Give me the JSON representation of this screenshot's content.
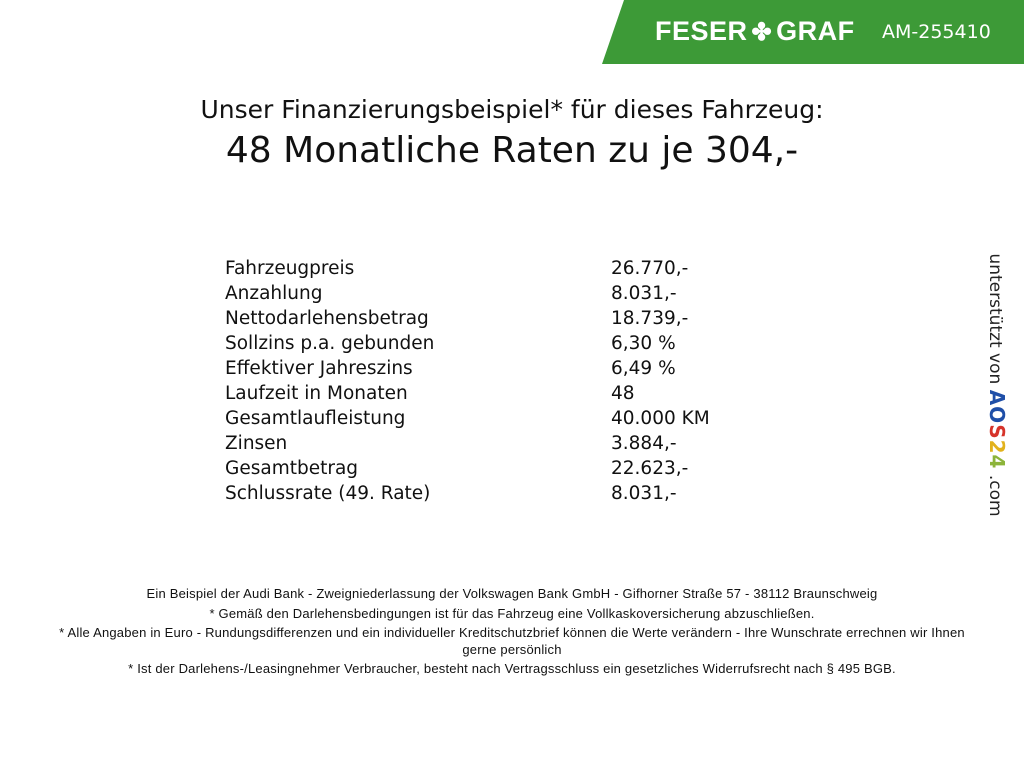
{
  "header": {
    "brand_left": "FESER",
    "brand_right": "GRAF",
    "brand_icon": "clover-icon",
    "code": "AM-255410",
    "banner_color": "#3d9a37"
  },
  "title": {
    "line1": "Unser Finanzierungsbeispiel* für dieses Fahrzeug:",
    "line2": "48 Monatliche Raten zu je 304,-"
  },
  "rows": [
    {
      "label": "Fahrzeugpreis",
      "value": "26.770,-"
    },
    {
      "label": "Anzahlung",
      "value": "8.031,-"
    },
    {
      "label": "Nettodarlehensbetrag",
      "value": "18.739,-"
    },
    {
      "label": "Sollzins p.a. gebunden",
      "value": "6,30 %"
    },
    {
      "label": "Effektiver Jahreszins",
      "value": "6,49 %"
    },
    {
      "label": "Laufzeit in Monaten",
      "value": "48"
    },
    {
      "label": "Gesamtlaufleistung",
      "value": "40.000 KM"
    },
    {
      "label": "Zinsen",
      "value": "3.884,-"
    },
    {
      "label": "Gesamtbetrag",
      "value": "22.623,-"
    },
    {
      "label": "Schlussrate (49. Rate)",
      "value": "8.031,-"
    }
  ],
  "side": {
    "text": "unterstützt von",
    "logo": [
      "A",
      "O",
      "S",
      "2",
      "4"
    ],
    "logo_colors": [
      "#1f4fa8",
      "#1f4fa8",
      "#d6332a",
      "#e2b21c",
      "#8cb43a"
    ],
    "suffix": ".com"
  },
  "footer": [
    "Ein Beispiel der Audi Bank - Zweigniederlassung der Volkswagen Bank GmbH - Gifhorner Straße 57 - 38112 Braunschweig",
    "* Gemäß den Darlehensbedingungen ist für das Fahrzeug eine Vollkaskoversicherung abzuschließen.",
    "* Alle Angaben in Euro - Rundungsdifferenzen und ein individueller Kreditschutzbrief können die Werte verändern - Ihre Wunschrate errechnen wir Ihnen gerne persönlich",
    "* Ist der Darlehens-/Leasingnehmer Verbraucher, besteht nach Vertragsschluss ein gesetzliches Widerrufsrecht nach § 495 BGB."
  ]
}
